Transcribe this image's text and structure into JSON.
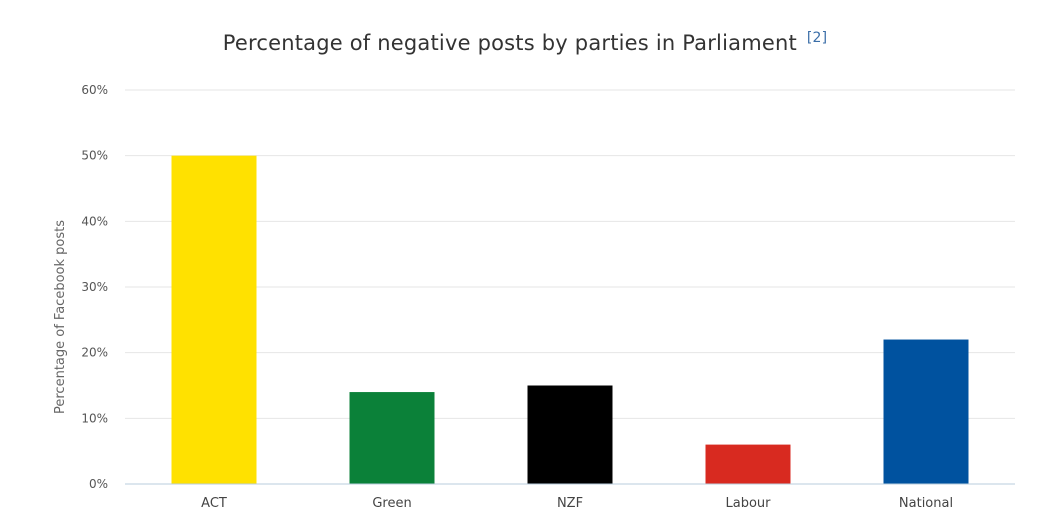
{
  "chart_data": {
    "type": "bar",
    "title": "Percentage of negative posts by parties in Parliament",
    "title_ref": "[2]",
    "xlabel": "",
    "ylabel": "Percentage of Facebook posts",
    "ylim": [
      0,
      60
    ],
    "yticks": [
      "0%",
      "10%",
      "20%",
      "30%",
      "40%",
      "50%",
      "60%"
    ],
    "grid": true,
    "legend": "none",
    "categories": [
      "ACT",
      "Green",
      "NZF",
      "Labour",
      "National"
    ],
    "values": [
      50,
      14,
      15,
      6,
      22
    ],
    "colors": [
      "#FFE100",
      "#0B8139",
      "#000000",
      "#D82A20",
      "#00529F"
    ]
  }
}
